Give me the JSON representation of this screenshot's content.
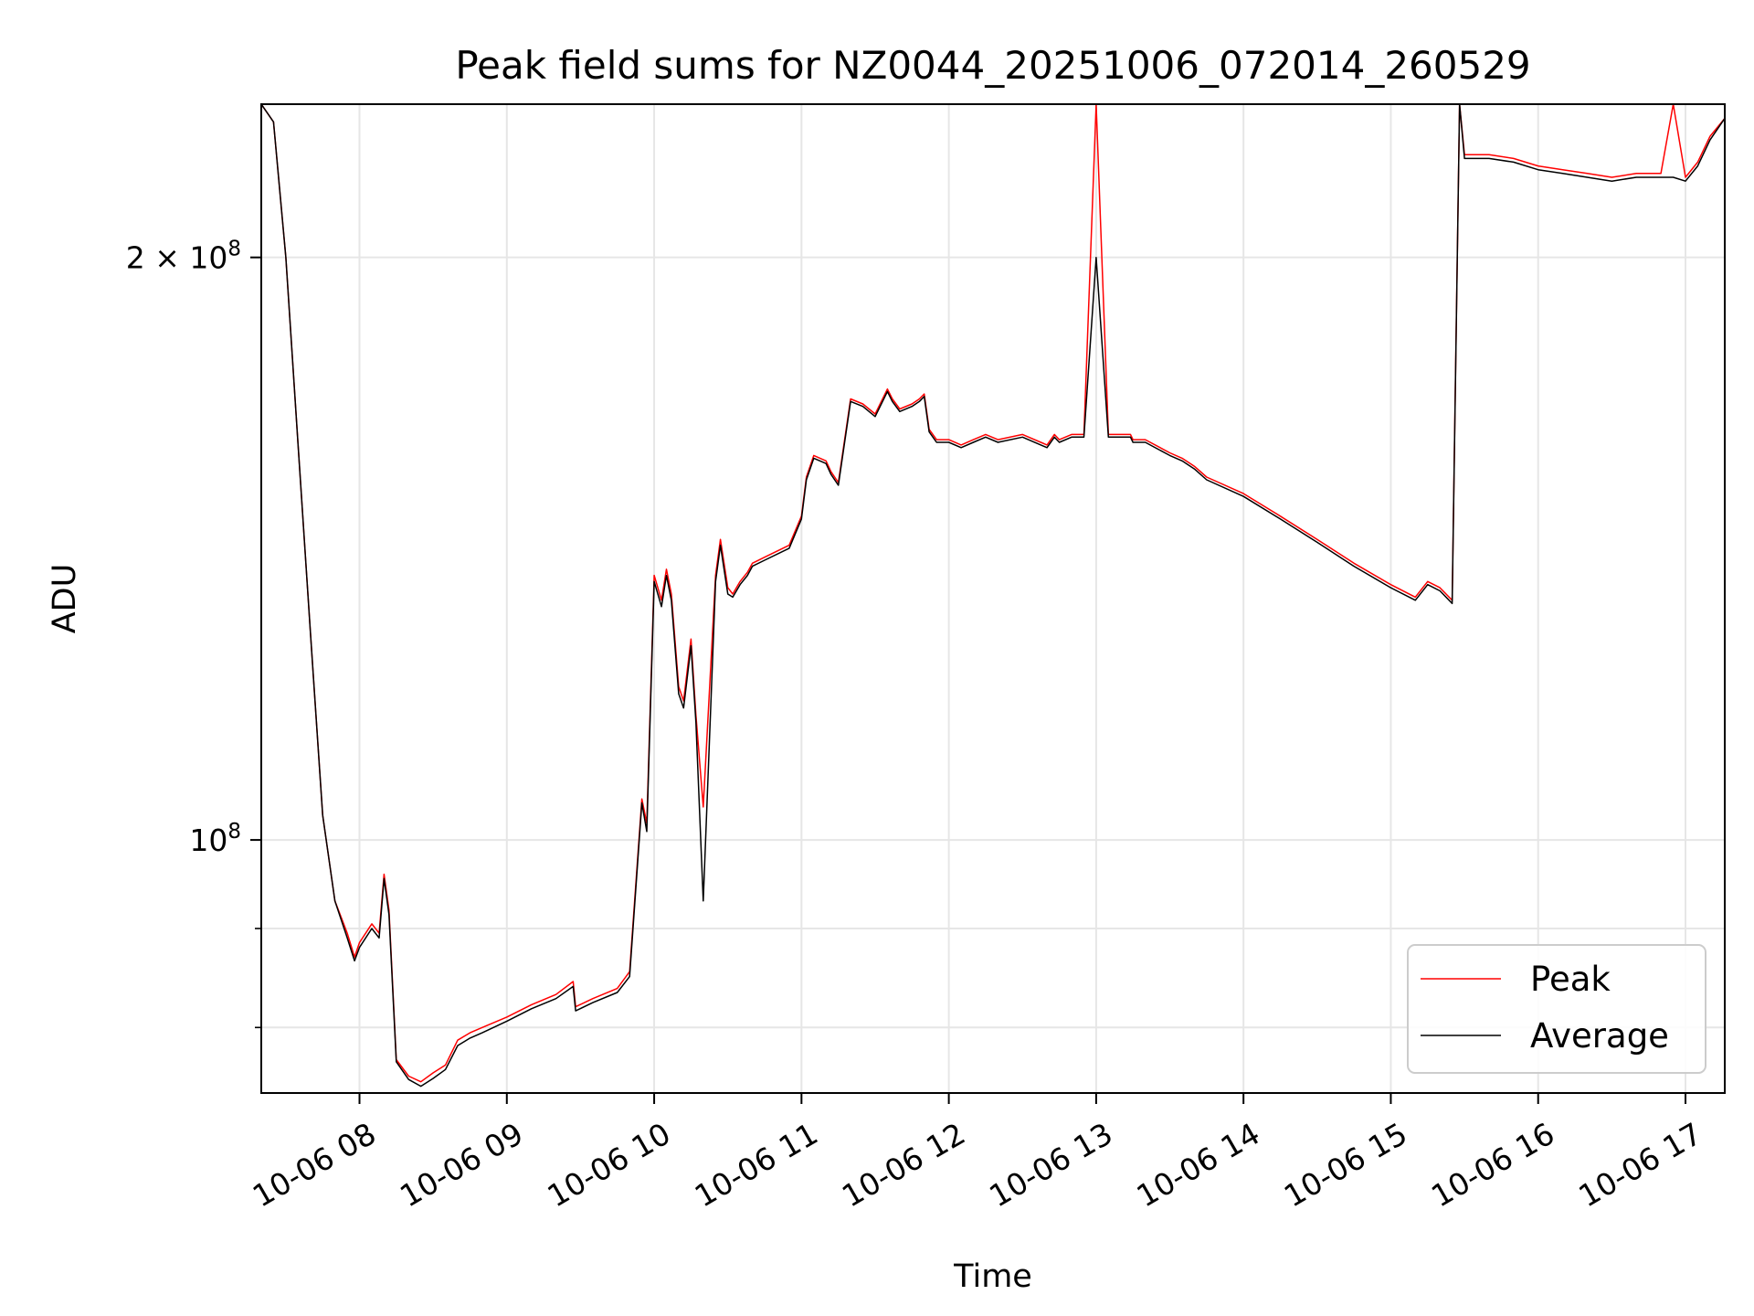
{
  "chart_data": {
    "type": "line",
    "title": "Peak field sums for NZ0044_20251006_072014_260529",
    "xlabel": "Time",
    "ylabel": "ADU",
    "yscale": "log",
    "ylim": [
      74000000,
      240000000
    ],
    "xlim": [
      "2025-10-06 07:20",
      "2025-10-06 17:16"
    ],
    "grid": true,
    "legend_position": "lower right",
    "x_tick_labels": [
      "10-06 08",
      "10-06 09",
      "10-06 10",
      "10-06 11",
      "10-06 12",
      "10-06 13",
      "10-06 14",
      "10-06 15",
      "10-06 16",
      "10-06 17"
    ],
    "x_ticks": [
      "2025-10-06 08:00",
      "2025-10-06 09:00",
      "2025-10-06 10:00",
      "2025-10-06 11:00",
      "2025-10-06 12:00",
      "2025-10-06 13:00",
      "2025-10-06 14:00",
      "2025-10-06 15:00",
      "2025-10-06 16:00",
      "2025-10-06 17:00"
    ],
    "y_tick_labels": [
      {
        "value": 200000000,
        "base": "2 × 10",
        "exp": "8"
      },
      {
        "value": 100000000,
        "base": "10",
        "exp": "8"
      }
    ],
    "y_minor_ticks": [
      80000000,
      90000000
    ],
    "series": [
      {
        "name": "Peak",
        "color": "#ff0000",
        "x": [
          "07:20",
          "07:25",
          "07:30",
          "07:35",
          "07:40",
          "07:45",
          "07:50",
          "07:55",
          "07:58",
          "08:00",
          "08:05",
          "08:08",
          "08:10",
          "08:12",
          "08:15",
          "08:20",
          "08:25",
          "08:30",
          "08:35",
          "08:40",
          "08:45",
          "08:50",
          "09:00",
          "09:10",
          "09:20",
          "09:27",
          "09:28",
          "09:35",
          "09:45",
          "09:50",
          "09:55",
          "09:57",
          "10:00",
          "10:03",
          "10:05",
          "10:07",
          "10:10",
          "10:12",
          "10:15",
          "10:17",
          "10:20",
          "10:25",
          "10:27",
          "10:30",
          "10:32",
          "10:35",
          "10:38",
          "10:40",
          "10:45",
          "10:55",
          "11:00",
          "11:02",
          "11:05",
          "11:10",
          "11:12",
          "11:15",
          "11:20",
          "11:25",
          "11:30",
          "11:35",
          "11:37",
          "11:40",
          "11:45",
          "11:48",
          "11:50",
          "11:52",
          "11:55",
          "12:00",
          "12:05",
          "12:10",
          "12:15",
          "12:20",
          "12:30",
          "12:40",
          "12:43",
          "12:45",
          "12:50",
          "12:55",
          "13:00",
          "13:05",
          "13:10",
          "13:12",
          "13:14",
          "13:15",
          "13:20",
          "13:30",
          "13:35",
          "13:40",
          "13:45",
          "14:00",
          "14:15",
          "14:30",
          "14:45",
          "15:00",
          "15:10",
          "15:15",
          "15:20",
          "15:25",
          "15:28",
          "15:30",
          "15:40",
          "15:50",
          "16:00",
          "16:10",
          "16:20",
          "16:30",
          "16:40",
          "16:50",
          "16:55",
          "17:00",
          "17:05",
          "17:10",
          "17:16"
        ],
        "y": [
          240000000,
          235000000,
          200000000,
          160000000,
          128000000,
          103000000,
          93000000,
          89500000,
          87000000,
          88500000,
          90500000,
          89500000,
          96000000,
          92000000,
          77000000,
          75500000,
          75000000,
          75800000,
          76500000,
          78800000,
          79500000,
          80000000,
          81000000,
          82200000,
          83200000,
          84500000,
          82000000,
          82800000,
          83800000,
          85500000,
          105000000,
          102000000,
          137000000,
          133000000,
          138000000,
          134000000,
          120000000,
          118000000,
          127000000,
          116000000,
          104000000,
          137000000,
          143000000,
          135000000,
          134000000,
          136000000,
          137500000,
          139000000,
          140000000,
          142000000,
          147000000,
          154000000,
          158000000,
          157000000,
          155000000,
          153000000,
          169000000,
          168000000,
          166000000,
          171000000,
          169000000,
          167000000,
          168000000,
          169000000,
          170000000,
          163000000,
          161000000,
          161000000,
          160000000,
          161000000,
          162000000,
          161000000,
          162000000,
          160000000,
          162000000,
          161000000,
          162000000,
          162000000,
          240000000,
          162000000,
          162000000,
          162000000,
          162000000,
          161000000,
          161000000,
          158500000,
          157500000,
          156000000,
          154000000,
          151000000,
          147000000,
          143000000,
          139000000,
          135500000,
          133500000,
          136000000,
          135000000,
          133000000,
          240000000,
          226000000,
          226000000,
          225000000,
          223000000,
          222000000,
          221000000,
          220000000,
          221000000,
          221000000,
          240000000,
          220000000,
          224000000,
          231000000,
          236000000
        ]
      },
      {
        "name": "Average",
        "color": "#000000",
        "x": [
          "07:20",
          "07:25",
          "07:30",
          "07:35",
          "07:40",
          "07:45",
          "07:50",
          "07:55",
          "07:58",
          "08:00",
          "08:05",
          "08:08",
          "08:10",
          "08:12",
          "08:15",
          "08:20",
          "08:25",
          "08:30",
          "08:35",
          "08:40",
          "08:45",
          "08:50",
          "09:00",
          "09:10",
          "09:20",
          "09:27",
          "09:28",
          "09:35",
          "09:45",
          "09:50",
          "09:55",
          "09:57",
          "10:00",
          "10:03",
          "10:05",
          "10:07",
          "10:10",
          "10:12",
          "10:15",
          "10:17",
          "10:20",
          "10:25",
          "10:27",
          "10:30",
          "10:32",
          "10:35",
          "10:38",
          "10:40",
          "10:45",
          "10:55",
          "11:00",
          "11:02",
          "11:05",
          "11:10",
          "11:12",
          "11:15",
          "11:20",
          "11:25",
          "11:30",
          "11:35",
          "11:37",
          "11:40",
          "11:45",
          "11:48",
          "11:50",
          "11:52",
          "11:55",
          "12:00",
          "12:05",
          "12:10",
          "12:15",
          "12:20",
          "12:30",
          "12:40",
          "12:43",
          "12:45",
          "12:50",
          "12:55",
          "13:00",
          "13:05",
          "13:10",
          "13:12",
          "13:14",
          "13:15",
          "13:20",
          "13:30",
          "13:35",
          "13:40",
          "13:45",
          "14:00",
          "14:15",
          "14:30",
          "14:45",
          "15:00",
          "15:10",
          "15:15",
          "15:20",
          "15:25",
          "15:28",
          "15:30",
          "15:40",
          "15:50",
          "16:00",
          "16:10",
          "16:20",
          "16:30",
          "16:40",
          "16:50",
          "16:55",
          "17:00",
          "17:05",
          "17:10",
          "17:16"
        ],
        "y": [
          240000000,
          235000000,
          200000000,
          160000000,
          128000000,
          103000000,
          93000000,
          89000000,
          86600000,
          88000000,
          90000000,
          89000000,
          95500000,
          91500000,
          76800000,
          75200000,
          74600000,
          75300000,
          76100000,
          78300000,
          79000000,
          79500000,
          80600000,
          81800000,
          82800000,
          84000000,
          81600000,
          82400000,
          83400000,
          85000000,
          104500000,
          101000000,
          136000000,
          132000000,
          137000000,
          133000000,
          119000000,
          117000000,
          126000000,
          115000000,
          93000000,
          136000000,
          142000000,
          134000000,
          133500000,
          135500000,
          137000000,
          138500000,
          139500000,
          141500000,
          146500000,
          153500000,
          157500000,
          156500000,
          154500000,
          152500000,
          168500000,
          167500000,
          165500000,
          170500000,
          168500000,
          166500000,
          167500000,
          168500000,
          169500000,
          162500000,
          160500000,
          160500000,
          159500000,
          160500000,
          161500000,
          160500000,
          161500000,
          159500000,
          161500000,
          160500000,
          161500000,
          161500000,
          200000000,
          161500000,
          161500000,
          161500000,
          161500000,
          160500000,
          160500000,
          158000000,
          157000000,
          155500000,
          153500000,
          150500000,
          146500000,
          142500000,
          138500000,
          135000000,
          133000000,
          135500000,
          134500000,
          132500000,
          240000000,
          225000000,
          225000000,
          224000000,
          222000000,
          221000000,
          220000000,
          219000000,
          220000000,
          220000000,
          220000000,
          219000000,
          223000000,
          230000000,
          236000000
        ]
      }
    ]
  }
}
